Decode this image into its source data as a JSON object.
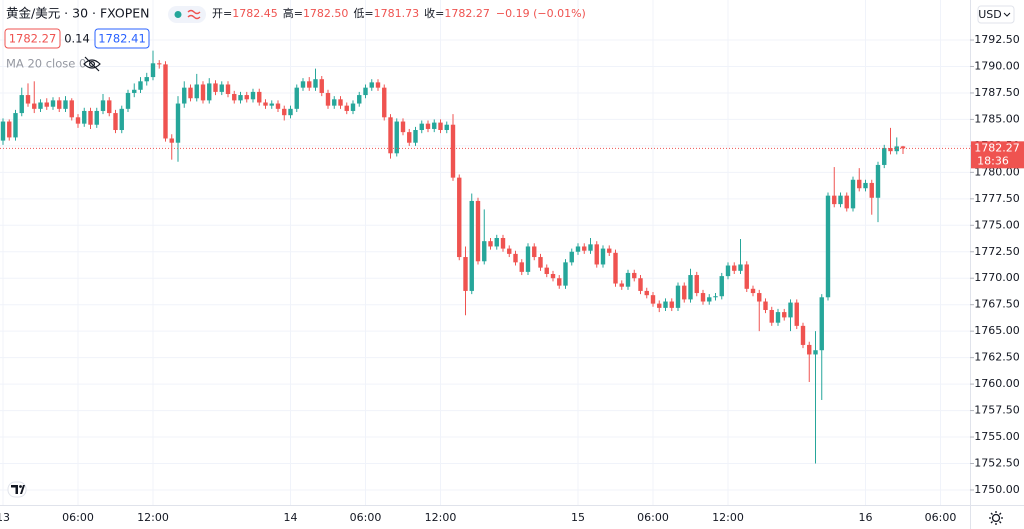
{
  "header": {
    "symbol": "黄金/美元 · 30 · FXOPEN",
    "ohlc": [
      {
        "label": "开=",
        "value": "1782.45"
      },
      {
        "label": "高=",
        "value": "1782.50"
      },
      {
        "label": "低=",
        "value": "1781.73"
      },
      {
        "label": "收=",
        "value": "1782.27"
      }
    ],
    "change": "−0.19 (−0.01%)",
    "bid": "1782.27",
    "spread": "0.14",
    "ask": "1782.41",
    "indicator": "MA 20 close 0"
  },
  "currency": "USD",
  "countdown": "18:36",
  "chart_data": {
    "type": "candlestick",
    "up_color": "#26a69a",
    "down_color": "#ef5350",
    "grid": true,
    "ylim": [
      1748.58,
      1796.28
    ],
    "yticks": [
      {
        "value": 1750,
        "label": "1750.00"
      },
      {
        "value": 1752.5,
        "label": "1752.50"
      },
      {
        "value": 1755,
        "label": "1755.00"
      },
      {
        "value": 1757.5,
        "label": "1757.50"
      },
      {
        "value": 1760,
        "label": "1760.00"
      },
      {
        "value": 1762.5,
        "label": "1762.50"
      },
      {
        "value": 1765,
        "label": "1765.00"
      },
      {
        "value": 1767.5,
        "label": "1767.50"
      },
      {
        "value": 1770,
        "label": "1770.00"
      },
      {
        "value": 1772.5,
        "label": "1772.50"
      },
      {
        "value": 1775,
        "label": "1775.00"
      },
      {
        "value": 1777.5,
        "label": "1777.50"
      },
      {
        "value": 1780,
        "label": "1780.00"
      },
      {
        "value": 1782.5,
        "label": "1782.50"
      },
      {
        "value": 1785,
        "label": "1785.00"
      },
      {
        "value": 1787.5,
        "label": "1787.50"
      },
      {
        "value": 1790,
        "label": "1790.00"
      },
      {
        "value": 1792.5,
        "label": "1792.50"
      }
    ],
    "categories": [
      "13",
      null,
      null,
      null,
      null,
      null,
      null,
      null,
      null,
      null,
      null,
      null,
      "06:00",
      null,
      null,
      null,
      null,
      null,
      null,
      null,
      null,
      null,
      null,
      null,
      "12:00",
      null,
      null,
      null,
      null,
      null,
      null,
      null,
      null,
      null,
      null,
      null,
      null,
      null,
      null,
      null,
      null,
      null,
      null,
      null,
      null,
      null,
      "14",
      null,
      null,
      null,
      null,
      null,
      null,
      null,
      null,
      null,
      null,
      null,
      "06:00",
      null,
      null,
      null,
      null,
      null,
      null,
      null,
      null,
      null,
      null,
      null,
      "12:00",
      null,
      null,
      null,
      null,
      null,
      null,
      null,
      null,
      null,
      null,
      null,
      null,
      null,
      null,
      null,
      null,
      null,
      null,
      null,
      null,
      null,
      "15",
      null,
      null,
      null,
      null,
      null,
      null,
      null,
      null,
      null,
      null,
      null,
      "06:00",
      null,
      null,
      null,
      null,
      null,
      null,
      null,
      null,
      null,
      null,
      null,
      "12:00",
      null,
      null,
      null,
      null,
      null,
      null,
      null,
      null,
      null,
      null,
      null,
      null,
      null,
      null,
      null,
      null,
      null,
      null,
      null,
      null,
      null,
      "16",
      null,
      null,
      null,
      null,
      null,
      null,
      null,
      null,
      null,
      null,
      null,
      "06:00"
    ],
    "open": [
      1783.0,
      1784.8,
      1783.3,
      1785.6,
      1787.3,
      1786.5,
      1786.0,
      1786.6,
      1786.2,
      1786.8,
      1786.0,
      1786.8,
      1785.2,
      1784.6,
      1785.8,
      1784.5,
      1785.8,
      1786.8,
      1785.6,
      1784.0,
      1786.0,
      1787.5,
      1787.8,
      1788.6,
      1789.0,
      1790.3,
      1790.2,
      1783.2,
      1782.8,
      1786.5,
      1788.0,
      1787.0,
      1788.3,
      1786.8,
      1788.4,
      1787.6,
      1788.3,
      1787.4,
      1786.8,
      1787.3,
      1786.9,
      1787.6,
      1786.6,
      1786.3,
      1786.5,
      1786.0,
      1785.4,
      1786.0,
      1788.0,
      1788.6,
      1788.0,
      1788.8,
      1787.5,
      1786.3,
      1786.9,
      1786.3,
      1785.8,
      1786.5,
      1787.3,
      1788.0,
      1788.5,
      1788.0,
      1785.2,
      1781.8,
      1784.8,
      1783.8,
      1782.8,
      1784.0,
      1784.6,
      1784.1,
      1784.7,
      1784.0,
      1784.5,
      1779.5,
      1772.0,
      1768.8,
      1777.3,
      1771.6,
      1773.5,
      1773.0,
      1773.8,
      1772.8,
      1772.3,
      1771.5,
      1770.6,
      1773.0,
      1772.0,
      1771.0,
      1770.4,
      1770.0,
      1769.3,
      1771.5,
      1772.5,
      1773.0,
      1772.6,
      1773.2,
      1771.3,
      1772.8,
      1772.4,
      1769.5,
      1769.2,
      1770.5,
      1770.0,
      1768.8,
      1768.4,
      1767.6,
      1767.2,
      1767.8,
      1767.2,
      1769.3,
      1768.0,
      1770.3,
      1768.6,
      1767.8,
      1768.2,
      1768.3,
      1770.2,
      1771.2,
      1770.7,
      1771.3,
      1769.0,
      1768.6,
      1767.8,
      1767.0,
      1765.8,
      1766.8,
      1766.3,
      1767.7,
      1765.5,
      1763.7,
      1762.8,
      1763.2,
      1768.2,
      1777.8,
      1777.0,
      1777.8,
      1776.6,
      1779.3,
      1778.5,
      1779.0,
      1777.6,
      1780.7,
      1782.3,
      1782.0,
      1782.45,
      null,
      null,
      null,
      null,
      null,
      null
    ],
    "high": [
      1785.1,
      1785.0,
      1785.9,
      1788.0,
      1788.4,
      1788.6,
      1786.9,
      1787.0,
      1787.1,
      1787.1,
      1787.2,
      1787.0,
      1785.5,
      1786.1,
      1786.1,
      1786.1,
      1787.4,
      1787.1,
      1785.9,
      1786.3,
      1787.8,
      1788.4,
      1789.0,
      1789.4,
      1791.5,
      1790.6,
      1790.5,
      1783.6,
      1787.2,
      1788.6,
      1788.3,
      1789.3,
      1788.6,
      1788.9,
      1788.7,
      1788.6,
      1788.6,
      1787.7,
      1787.6,
      1787.6,
      1787.9,
      1787.9,
      1786.9,
      1786.8,
      1786.8,
      1786.3,
      1786.3,
      1788.3,
      1788.9,
      1789.0,
      1789.8,
      1789.1,
      1787.8,
      1787.2,
      1787.2,
      1786.6,
      1786.8,
      1787.6,
      1788.3,
      1788.8,
      1788.8,
      1788.3,
      1785.5,
      1785.1,
      1785.1,
      1784.1,
      1784.3,
      1784.9,
      1784.9,
      1785.0,
      1785.0,
      1784.8,
      1785.5,
      1779.8,
      1773.0,
      1778.0,
      1777.6,
      1776.5,
      1773.8,
      1774.1,
      1774.1,
      1773.1,
      1772.6,
      1771.8,
      1773.3,
      1773.3,
      1772.3,
      1771.3,
      1770.7,
      1770.3,
      1771.8,
      1772.8,
      1773.3,
      1773.3,
      1773.8,
      1773.5,
      1773.1,
      1773.1,
      1772.7,
      1769.8,
      1770.8,
      1770.8,
      1770.3,
      1769.1,
      1768.7,
      1767.9,
      1768.1,
      1768.1,
      1769.6,
      1769.6,
      1770.9,
      1770.6,
      1768.9,
      1768.5,
      1768.6,
      1770.5,
      1771.5,
      1771.5,
      1773.7,
      1771.6,
      1769.3,
      1768.9,
      1768.1,
      1767.3,
      1767.1,
      1767.1,
      1768.0,
      1768.0,
      1765.8,
      1764.0,
      1765.0,
      1768.5,
      1778.1,
      1780.5,
      1778.1,
      1778.1,
      1779.6,
      1780.4,
      1779.3,
      1779.3,
      1781.0,
      1782.6,
      1784.2,
      1783.3,
      1782.5,
      null,
      null,
      null,
      null,
      null,
      null
    ],
    "low": [
      1782.6,
      1783.0,
      1783.0,
      1785.3,
      1786.2,
      1785.6,
      1785.7,
      1785.9,
      1785.9,
      1785.7,
      1785.7,
      1784.9,
      1784.2,
      1784.3,
      1784.1,
      1784.2,
      1785.5,
      1785.3,
      1783.7,
      1783.7,
      1785.7,
      1787.1,
      1787.5,
      1788.2,
      1788.7,
      1789.8,
      1782.9,
      1781.2,
      1781.0,
      1786.1,
      1786.7,
      1786.7,
      1786.5,
      1786.5,
      1787.3,
      1787.3,
      1787.1,
      1786.5,
      1786.5,
      1786.6,
      1786.6,
      1786.3,
      1786.0,
      1786.0,
      1785.7,
      1784.9,
      1785.1,
      1785.7,
      1787.7,
      1787.7,
      1787.7,
      1787.2,
      1786.0,
      1786.0,
      1786.0,
      1785.5,
      1785.5,
      1786.2,
      1787.0,
      1787.7,
      1787.7,
      1784.9,
      1781.3,
      1781.5,
      1783.5,
      1782.5,
      1782.5,
      1783.7,
      1783.8,
      1783.8,
      1783.7,
      1783.7,
      1779.2,
      1771.7,
      1766.5,
      1768.5,
      1771.3,
      1771.3,
      1772.7,
      1772.7,
      1772.5,
      1772.0,
      1771.2,
      1770.3,
      1770.3,
      1771.7,
      1770.7,
      1770.1,
      1769.7,
      1769.0,
      1769.0,
      1771.2,
      1772.2,
      1772.3,
      1772.3,
      1771.0,
      1771.0,
      1772.1,
      1769.2,
      1768.9,
      1768.9,
      1769.7,
      1768.5,
      1768.1,
      1767.3,
      1766.8,
      1766.9,
      1766.9,
      1766.9,
      1767.7,
      1767.7,
      1768.3,
      1767.5,
      1767.5,
      1767.9,
      1768.0,
      1769.9,
      1770.4,
      1770.4,
      1768.7,
      1768.3,
      1765.0,
      1766.7,
      1765.5,
      1765.5,
      1766.0,
      1765.0,
      1765.2,
      1763.4,
      1760.2,
      1752.5,
      1758.5,
      1767.9,
      1776.7,
      1776.7,
      1776.3,
      1776.3,
      1778.2,
      1778.2,
      1776.0,
      1775.3,
      1780.4,
      1781.7,
      1781.7,
      1781.73,
      null,
      null,
      null,
      null,
      null,
      null
    ],
    "close": [
      1784.8,
      1783.3,
      1785.6,
      1787.3,
      1786.5,
      1786.0,
      1786.6,
      1786.2,
      1786.8,
      1786.0,
      1786.8,
      1785.2,
      1784.6,
      1785.8,
      1784.5,
      1785.8,
      1786.8,
      1785.6,
      1784.0,
      1786.0,
      1787.5,
      1787.8,
      1788.6,
      1789.0,
      1790.3,
      1790.2,
      1783.2,
      1782.8,
      1786.5,
      1788.0,
      1787.0,
      1788.3,
      1786.8,
      1788.4,
      1787.6,
      1788.3,
      1787.4,
      1786.8,
      1787.3,
      1786.9,
      1787.6,
      1786.6,
      1786.3,
      1786.5,
      1786.0,
      1785.4,
      1786.0,
      1788.0,
      1788.6,
      1788.0,
      1788.8,
      1787.5,
      1786.3,
      1786.9,
      1786.3,
      1785.8,
      1786.5,
      1787.3,
      1788.0,
      1788.5,
      1788.0,
      1785.2,
      1781.8,
      1784.8,
      1783.8,
      1782.8,
      1784.0,
      1784.6,
      1784.1,
      1784.7,
      1784.0,
      1784.5,
      1779.5,
      1772.0,
      1768.8,
      1777.3,
      1771.6,
      1773.5,
      1773.0,
      1773.8,
      1772.8,
      1772.3,
      1771.5,
      1770.6,
      1773.0,
      1772.0,
      1771.0,
      1770.4,
      1770.0,
      1769.3,
      1771.5,
      1772.5,
      1773.0,
      1772.6,
      1773.2,
      1771.3,
      1772.8,
      1772.4,
      1769.5,
      1769.2,
      1770.5,
      1770.0,
      1768.8,
      1768.4,
      1767.6,
      1767.2,
      1767.8,
      1767.2,
      1769.3,
      1768.0,
      1770.3,
      1768.6,
      1767.8,
      1768.2,
      1768.3,
      1770.2,
      1771.2,
      1770.7,
      1771.3,
      1769.0,
      1768.6,
      1767.8,
      1767.0,
      1765.8,
      1766.8,
      1766.3,
      1767.7,
      1765.5,
      1763.7,
      1762.8,
      1763.2,
      1768.2,
      1777.8,
      1777.0,
      1777.8,
      1776.6,
      1779.3,
      1778.5,
      1779.0,
      1777.6,
      1780.7,
      1782.3,
      1782.0,
      1782.45,
      1782.27,
      null,
      null,
      null,
      null,
      null,
      null
    ]
  }
}
